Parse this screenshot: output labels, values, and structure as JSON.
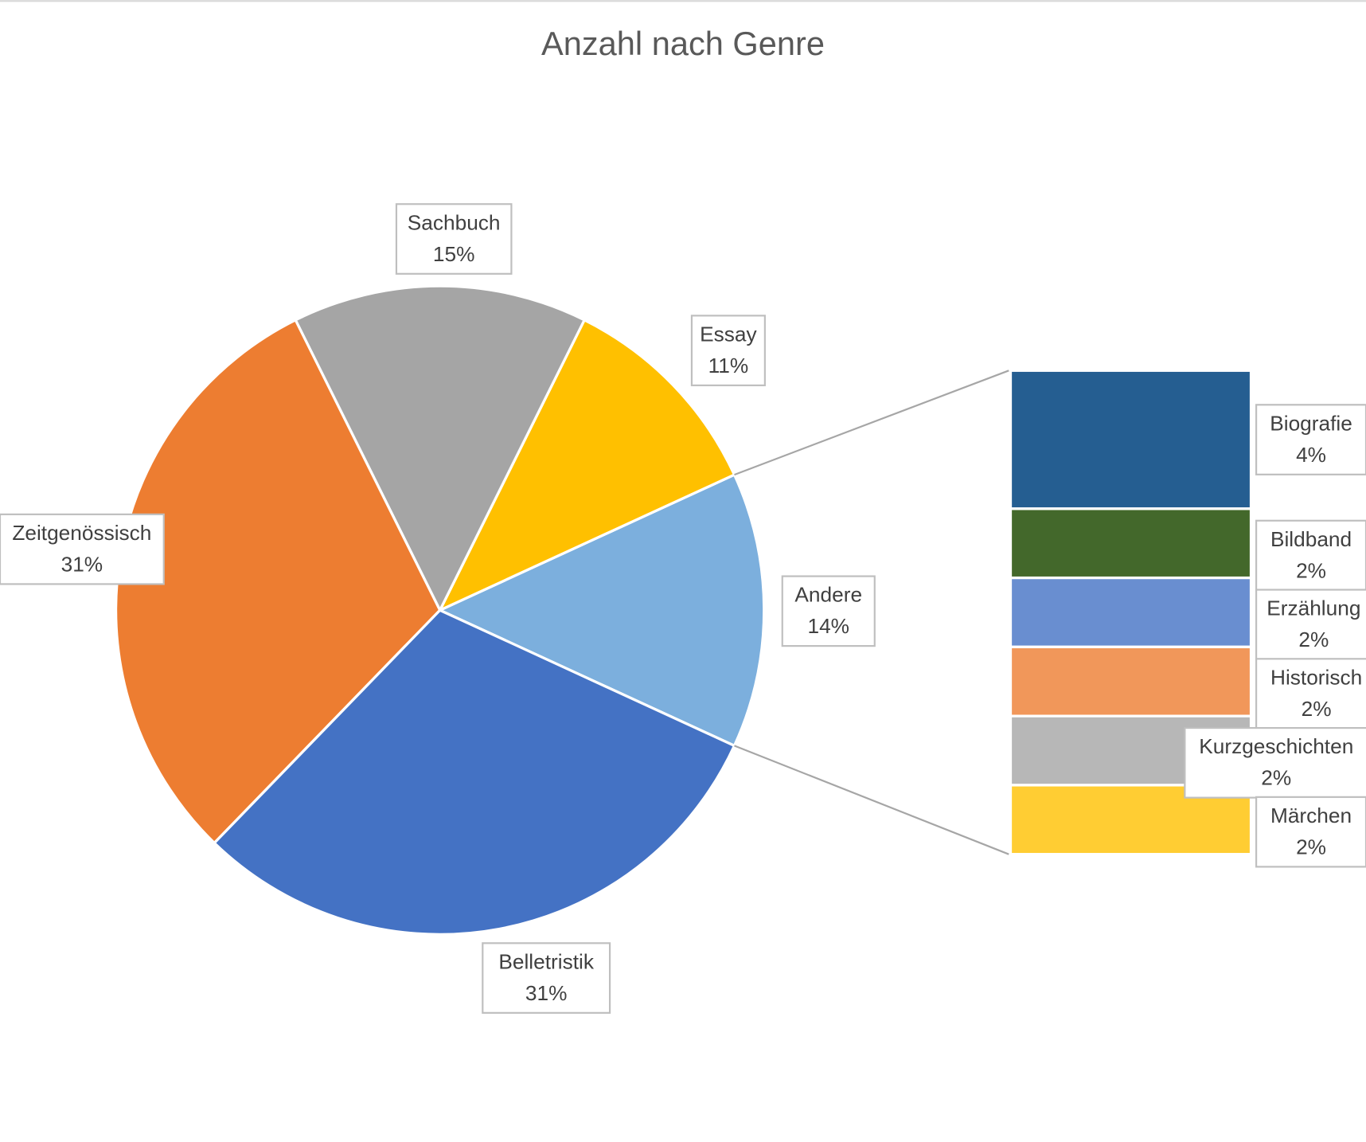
{
  "chart_data": {
    "type": "bar_of_pie",
    "title": "Anzahl nach Genre",
    "categories": [
      "Andere",
      "Essay",
      "Sachbuch",
      "Zeitgenössisch",
      "Belletristik"
    ],
    "values": [
      14,
      11,
      15,
      31,
      31
    ],
    "value_labels": [
      "14%",
      "11%",
      "15%",
      "31%",
      "31%"
    ],
    "colors": [
      "#7cafdd",
      "#ffc000",
      "#a5a5a5",
      "#ed7d31",
      "#4472c4"
    ],
    "sub_categories": [
      "Biografie",
      "Bildband",
      "Erzählung",
      "Historisch",
      "Kurzgeschichten",
      "Märchen"
    ],
    "sub_values": [
      4,
      2,
      2,
      2,
      2,
      2
    ],
    "sub_value_labels": [
      "4%",
      "2%",
      "2%",
      "2%",
      "2%",
      "2%"
    ],
    "sub_colors": [
      "#255e91",
      "#43682b",
      "#698ed0",
      "#f1975a",
      "#b7b7b7",
      "#ffcd33"
    ]
  }
}
